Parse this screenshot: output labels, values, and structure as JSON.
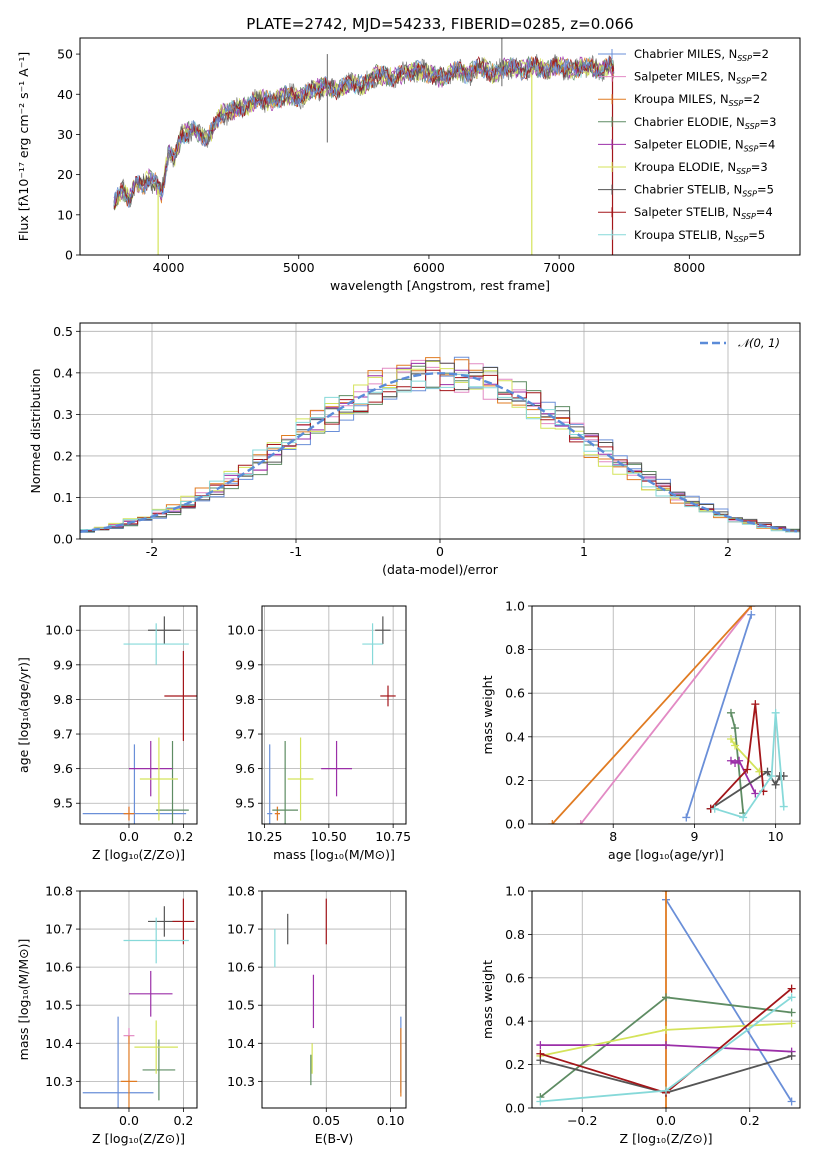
{
  "figure": {
    "title": "PLATE=2742, MJD=54233, FIBERID=0285, z=0.066"
  },
  "colors": {
    "chabrier_miles": "#6a8fd8",
    "salpeter_miles": "#e28ac4",
    "kroupa_miles": "#e07b22",
    "chabrier_elodie": "#5e8c63",
    "salpeter_elodie": "#9b2fa8",
    "kroupa_elodie": "#d4e35a",
    "chabrier_stelib": "#555555",
    "salpeter_stelib": "#a3161a",
    "kroupa_stelib": "#86d9d9",
    "grid": "#b0b0b0",
    "spectrum_gray": "#808080",
    "gauss": "#5b8bd8"
  },
  "chart_data": [
    {
      "id": "spectrum",
      "type": "line",
      "xlabel": "wavelength [Angstrom, rest frame]",
      "ylabel": "Flux [fλ10⁻¹⁷ erg cm⁻² s⁻¹ A⁻¹]",
      "xlim": [
        3320,
        8850
      ],
      "ylim": [
        0,
        54
      ],
      "xticks": [
        4000,
        5000,
        6000,
        7000,
        8000
      ],
      "yticks": [
        0,
        10,
        20,
        30,
        40,
        50
      ],
      "grid": false,
      "legend_position": "right",
      "legend": [
        {
          "base": "Chabrier MILES, N",
          "sub": "SSP",
          "tail": "=2",
          "color_key": "chabrier_miles"
        },
        {
          "base": "Salpeter MILES, N",
          "sub": "SSP",
          "tail": "=2",
          "color_key": "salpeter_miles"
        },
        {
          "base": "Kroupa MILES, N",
          "sub": "SSP",
          "tail": "=2",
          "color_key": "kroupa_miles"
        },
        {
          "base": "Chabrier ELODIE, N",
          "sub": "SSP",
          "tail": "=3",
          "color_key": "chabrier_elodie"
        },
        {
          "base": "Salpeter ELODIE, N",
          "sub": "SSP",
          "tail": "=4",
          "color_key": "salpeter_elodie"
        },
        {
          "base": "Kroupa ELODIE, N",
          "sub": "SSP",
          "tail": "=3",
          "color_key": "kroupa_elodie"
        },
        {
          "base": "Chabrier STELIB, N",
          "sub": "SSP",
          "tail": "=5",
          "color_key": "chabrier_stelib"
        },
        {
          "base": "Salpeter STELIB, N",
          "sub": "SSP",
          "tail": "=4",
          "color_key": "salpeter_stelib"
        },
        {
          "base": "Kroupa STELIB, N",
          "sub": "SSP",
          "tail": "=5",
          "color_key": "kroupa_stelib"
        }
      ],
      "envelope": {
        "x": [
          3580,
          3650,
          3700,
          3750,
          3800,
          3850,
          3900,
          3950,
          4000,
          4050,
          4100,
          4200,
          4300,
          4400,
          4500,
          4600,
          4700,
          4800,
          4900,
          5000,
          5100,
          5200,
          5300,
          5400,
          5500,
          5600,
          5700,
          5800,
          5900,
          6000,
          6100,
          6200,
          6300,
          6400,
          6500,
          6600,
          6700,
          6800,
          6900,
          7000,
          7100,
          7200,
          7300,
          7400,
          7420
        ],
        "y": [
          13,
          16,
          14,
          18,
          17,
          19,
          18,
          15,
          26,
          24,
          30,
          31,
          29,
          35,
          36,
          37,
          39,
          38,
          40,
          39,
          41,
          42,
          41,
          43,
          42,
          45,
          44,
          45,
          46,
          45,
          44,
          46,
          45,
          47,
          45,
          47,
          46,
          47,
          46,
          47,
          46,
          47,
          46,
          47,
          46
        ]
      },
      "artifacts": [
        {
          "x": 3920,
          "y0": 0,
          "y1": 16,
          "color_key": "kroupa_elodie"
        },
        {
          "x": 5220,
          "y0": 28,
          "y1": 50,
          "color_key": "spectrum_gray"
        },
        {
          "x": 6560,
          "y0": 42,
          "y1": 54,
          "color_key": "spectrum_gray"
        },
        {
          "x": 6790,
          "y0": 0,
          "y1": 45,
          "color_key": "kroupa_elodie"
        },
        {
          "x": 7410,
          "y0": 0,
          "y1": 47,
          "color_key": "salpeter_stelib"
        }
      ]
    },
    {
      "id": "residuals",
      "type": "histogram",
      "xlabel": "(data-model)/error",
      "ylabel": "Normed distribution",
      "xlim": [
        -2.5,
        2.5
      ],
      "ylim": [
        0,
        0.52
      ],
      "xticks": [
        -2,
        -1,
        0,
        1,
        2
      ],
      "yticks": [
        0.0,
        0.1,
        0.2,
        0.3,
        0.4,
        0.5
      ],
      "grid": true,
      "legend_position": "top-right",
      "legend_label": "𝒩(0, 1)",
      "bin_width": 0.1,
      "gaussian": {
        "mu": 0,
        "sigma": 1
      }
    },
    {
      "id": "age_vs_Z",
      "type": "scatter_errorbar",
      "xlabel": "Z [log₁₀(Z/Z⊙)]",
      "ylabel": "age  [log₁₀(age/yr)]",
      "xlim": [
        -0.18,
        0.25
      ],
      "ylim": [
        9.44,
        10.07
      ],
      "xticks": [
        0.0,
        0.2
      ],
      "yticks": [
        9.5,
        9.6,
        9.7,
        9.8,
        9.9,
        10.0
      ],
      "grid": true,
      "points": [
        {
          "key": "chabrier_miles",
          "x": 0.02,
          "xerr": 0.19,
          "y": 9.47,
          "yerr": 0.2
        },
        {
          "key": "salpeter_miles",
          "x": 0.0,
          "xerr": 0.02,
          "y": 9.47,
          "yerr": 0.02
        },
        {
          "key": "kroupa_miles",
          "x": 0.0,
          "xerr": 0.02,
          "y": 9.47,
          "yerr": 0.02
        },
        {
          "key": "chabrier_elodie",
          "x": 0.16,
          "xerr": 0.06,
          "y": 9.48,
          "yerr": 0.2
        },
        {
          "key": "salpeter_elodie",
          "x": 0.08,
          "xerr": 0.08,
          "y": 9.6,
          "yerr": 0.08
        },
        {
          "key": "kroupa_elodie",
          "x": 0.11,
          "xerr": 0.07,
          "y": 9.57,
          "yerr": 0.12
        },
        {
          "key": "chabrier_stelib",
          "x": 0.13,
          "xerr": 0.06,
          "y": 10.0,
          "yerr": 0.04
        },
        {
          "key": "salpeter_stelib",
          "x": 0.2,
          "xerr": 0.07,
          "y": 9.81,
          "yerr": 0.13
        },
        {
          "key": "kroupa_stelib",
          "x": 0.1,
          "xerr": 0.12,
          "y": 9.96,
          "yerr": 0.06
        }
      ]
    },
    {
      "id": "age_vs_mass",
      "type": "scatter_errorbar",
      "xlabel": "mass [log₁₀(M/M⊙)]",
      "ylabel": "",
      "xlim": [
        10.24,
        10.8
      ],
      "ylim": [
        9.44,
        10.07
      ],
      "xticks": [
        10.25,
        10.5,
        10.75
      ],
      "yticks": [
        9.5,
        9.6,
        9.7,
        9.8,
        9.9,
        10.0
      ],
      "grid": true,
      "points": [
        {
          "key": "chabrier_miles",
          "x": 10.27,
          "xerr": 0.01,
          "y": 9.47,
          "yerr": 0.2
        },
        {
          "key": "salpeter_miles",
          "x": 10.3,
          "xerr": 0.01,
          "y": 9.47,
          "yerr": 0.02
        },
        {
          "key": "kroupa_miles",
          "x": 10.3,
          "xerr": 0.01,
          "y": 9.47,
          "yerr": 0.02
        },
        {
          "key": "chabrier_elodie",
          "x": 10.33,
          "xerr": 0.05,
          "y": 9.48,
          "yerr": 0.2
        },
        {
          "key": "salpeter_elodie",
          "x": 10.53,
          "xerr": 0.06,
          "y": 9.6,
          "yerr": 0.08
        },
        {
          "key": "kroupa_elodie",
          "x": 10.39,
          "xerr": 0.05,
          "y": 9.57,
          "yerr": 0.12
        },
        {
          "key": "chabrier_stelib",
          "x": 10.71,
          "xerr": 0.03,
          "y": 10.0,
          "yerr": 0.04
        },
        {
          "key": "salpeter_stelib",
          "x": 10.73,
          "xerr": 0.03,
          "y": 9.81,
          "yerr": 0.03
        },
        {
          "key": "kroupa_stelib",
          "x": 10.67,
          "xerr": 0.04,
          "y": 9.96,
          "yerr": 0.06
        }
      ]
    },
    {
      "id": "weight_vs_age",
      "type": "line_markers",
      "xlabel": "age  [log₁₀(age/yr)]",
      "ylabel": "mass weight",
      "xlim": [
        7.0,
        10.3
      ],
      "ylim": [
        0,
        1.0
      ],
      "xticks": [
        8,
        9,
        10
      ],
      "yticks": [
        0.0,
        0.2,
        0.4,
        0.6,
        0.8,
        1.0
      ],
      "grid": true,
      "series": [
        {
          "key": "chabrier_miles",
          "x": [
            8.9,
            9.7
          ],
          "y": [
            0.03,
            0.96
          ]
        },
        {
          "key": "salpeter_miles",
          "x": [
            7.6,
            9.7
          ],
          "y": [
            0.0,
            1.0
          ]
        },
        {
          "key": "kroupa_miles",
          "x": [
            7.25,
            9.7
          ],
          "y": [
            0.0,
            1.0
          ]
        },
        {
          "key": "chabrier_elodie",
          "x": [
            9.45,
            9.5,
            9.6
          ],
          "y": [
            0.51,
            0.44,
            0.05
          ]
        },
        {
          "key": "salpeter_elodie",
          "x": [
            9.45,
            9.5,
            9.55,
            9.75
          ],
          "y": [
            0.29,
            0.28,
            0.29,
            0.14
          ]
        },
        {
          "key": "kroupa_elodie",
          "x": [
            9.45,
            9.5,
            9.8
          ],
          "y": [
            0.39,
            0.36,
            0.24
          ]
        },
        {
          "key": "chabrier_stelib",
          "x": [
            9.2,
            9.9,
            10.0,
            10.05,
            10.1
          ],
          "y": [
            0.07,
            0.24,
            0.18,
            0.22,
            0.22
          ]
        },
        {
          "key": "salpeter_stelib",
          "x": [
            9.2,
            9.65,
            9.75,
            9.85
          ],
          "y": [
            0.07,
            0.25,
            0.55,
            0.15
          ]
        },
        {
          "key": "kroupa_stelib",
          "x": [
            9.25,
            9.6,
            9.95,
            10.0,
            10.1
          ],
          "y": [
            0.07,
            0.03,
            0.22,
            0.51,
            0.08
          ]
        }
      ]
    },
    {
      "id": "mass_vs_Z",
      "type": "scatter_errorbar",
      "xlabel": "Z [log₁₀(Z/Z⊙)]",
      "ylabel": "mass [log₁₀(M/M⊙)]",
      "xlim": [
        -0.18,
        0.25
      ],
      "ylim": [
        10.23,
        10.8
      ],
      "xticks": [
        0.0,
        0.2
      ],
      "yticks": [
        10.3,
        10.4,
        10.5,
        10.6,
        10.7,
        10.8
      ],
      "grid": true,
      "points": [
        {
          "key": "chabrier_miles",
          "x": -0.04,
          "xerr": 0.13,
          "y": 10.27,
          "yerr": 0.2
        },
        {
          "key": "salpeter_miles",
          "x": 0.0,
          "xerr": 0.02,
          "y": 10.42,
          "yerr": 0.02
        },
        {
          "key": "kroupa_miles",
          "x": 0.0,
          "xerr": 0.03,
          "y": 10.3,
          "yerr": 0.12
        },
        {
          "key": "chabrier_elodie",
          "x": 0.11,
          "xerr": 0.06,
          "y": 10.33,
          "yerr": 0.08
        },
        {
          "key": "salpeter_elodie",
          "x": 0.08,
          "xerr": 0.08,
          "y": 10.53,
          "yerr": 0.06
        },
        {
          "key": "kroupa_elodie",
          "x": 0.1,
          "xerr": 0.08,
          "y": 10.39,
          "yerr": 0.07
        },
        {
          "key": "chabrier_stelib",
          "x": 0.13,
          "xerr": 0.06,
          "y": 10.72,
          "yerr": 0.04
        },
        {
          "key": "salpeter_stelib",
          "x": 0.2,
          "xerr": 0.04,
          "y": 10.72,
          "yerr": 0.06
        },
        {
          "key": "kroupa_stelib",
          "x": 0.1,
          "xerr": 0.12,
          "y": 10.67,
          "yerr": 0.06
        }
      ]
    },
    {
      "id": "mass_vs_ebv",
      "type": "scatter_errorbar",
      "xlabel": "E(B-V)",
      "ylabel": "",
      "xlim": [
        0.0,
        0.112
      ],
      "ylim": [
        10.23,
        10.8
      ],
      "xticks": [
        0.05,
        0.1
      ],
      "yticks": [
        10.3,
        10.4,
        10.5,
        10.6,
        10.7,
        10.8
      ],
      "grid": true,
      "points": [
        {
          "key": "chabrier_miles",
          "x": 0.108,
          "xerr": 0,
          "y": 10.37,
          "yerr": 0.1
        },
        {
          "key": "kroupa_miles",
          "x": 0.108,
          "xerr": 0,
          "y": 10.35,
          "yerr": 0.09
        },
        {
          "key": "chabrier_elodie",
          "x": 0.038,
          "xerr": 0,
          "y": 10.33,
          "yerr": 0.04
        },
        {
          "key": "salpeter_elodie",
          "x": 0.04,
          "xerr": 0,
          "y": 10.51,
          "yerr": 0.07
        },
        {
          "key": "kroupa_elodie",
          "x": 0.039,
          "xerr": 0,
          "y": 10.36,
          "yerr": 0.04
        },
        {
          "key": "chabrier_stelib",
          "x": 0.02,
          "xerr": 0,
          "y": 10.7,
          "yerr": 0.04
        },
        {
          "key": "salpeter_stelib",
          "x": 0.05,
          "xerr": 0,
          "y": 10.72,
          "yerr": 0.06
        },
        {
          "key": "kroupa_stelib",
          "x": 0.01,
          "xerr": 0,
          "y": 10.65,
          "yerr": 0.05
        }
      ]
    },
    {
      "id": "weight_vs_Z",
      "type": "line_markers",
      "xlabel": "Z [log₁₀(Z/Z⊙)]",
      "ylabel": "mass weight",
      "xlim": [
        -0.32,
        0.32
      ],
      "ylim": [
        0,
        1.0
      ],
      "xticks": [
        -0.2,
        0.0,
        0.2
      ],
      "yticks": [
        0.0,
        0.2,
        0.4,
        0.6,
        0.8,
        1.0
      ],
      "grid": true,
      "series": [
        {
          "key": "chabrier_miles",
          "x": [
            0.0,
            0.3
          ],
          "y": [
            0.96,
            0.03
          ]
        },
        {
          "key": "kroupa_miles",
          "x": [
            0.0,
            0.0
          ],
          "y": [
            0.0,
            1.0
          ]
        },
        {
          "key": "chabrier_elodie",
          "x": [
            -0.3,
            0.0,
            0.3
          ],
          "y": [
            0.05,
            0.51,
            0.44
          ]
        },
        {
          "key": "salpeter_elodie",
          "x": [
            -0.3,
            0.0,
            0.3
          ],
          "y": [
            0.29,
            0.29,
            0.26
          ]
        },
        {
          "key": "kroupa_elodie",
          "x": [
            -0.3,
            0.0,
            0.3
          ],
          "y": [
            0.24,
            0.36,
            0.39
          ]
        },
        {
          "key": "chabrier_stelib",
          "x": [
            -0.3,
            0.0,
            0.3
          ],
          "y": [
            0.22,
            0.07,
            0.24
          ]
        },
        {
          "key": "salpeter_stelib",
          "x": [
            -0.3,
            0.0,
            0.3
          ],
          "y": [
            0.25,
            0.07,
            0.55
          ]
        },
        {
          "key": "kroupa_stelib",
          "x": [
            -0.3,
            0.0,
            0.3
          ],
          "y": [
            0.03,
            0.08,
            0.51
          ]
        }
      ]
    }
  ]
}
